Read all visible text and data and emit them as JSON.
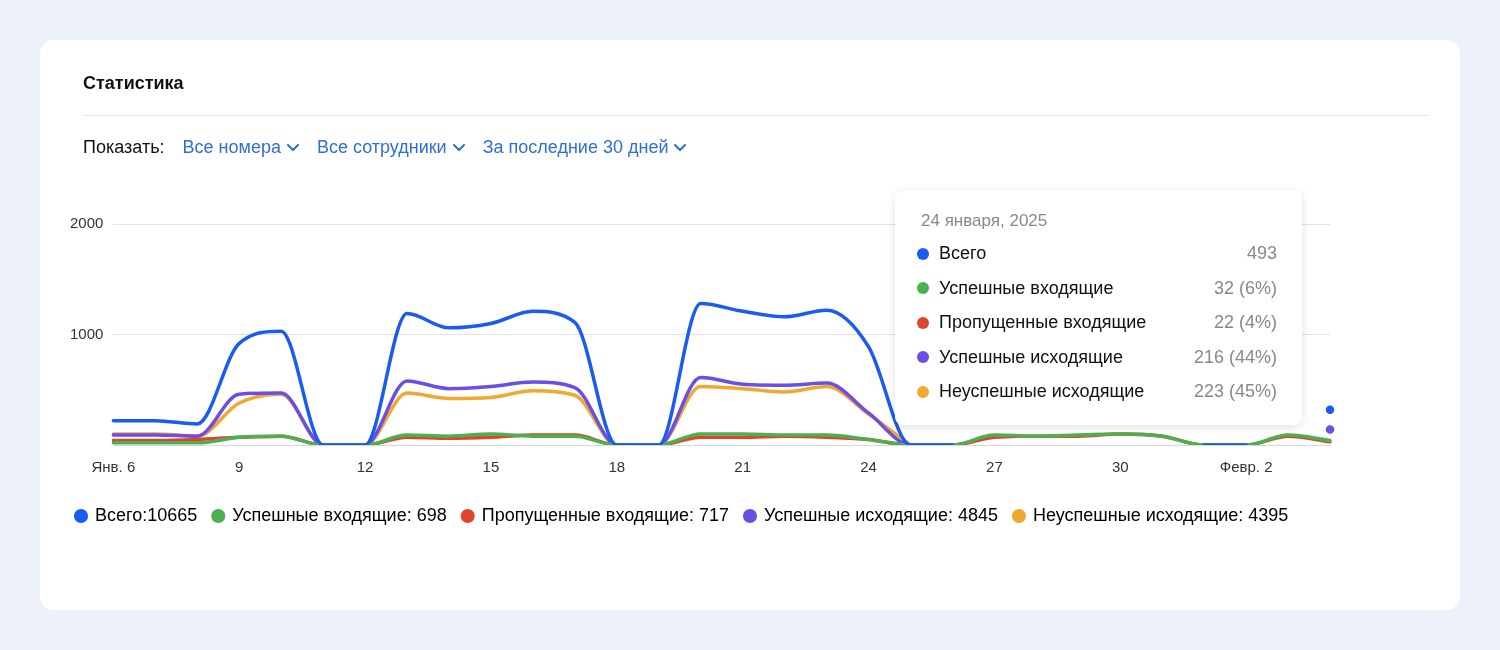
{
  "chart_data": {
    "type": "line",
    "title": "Статистика",
    "categories": [
      "Янв. 6",
      null,
      null,
      "9",
      null,
      null,
      "12",
      null,
      null,
      "15",
      null,
      null,
      "18",
      null,
      null,
      "21",
      null,
      null,
      "24",
      null,
      null,
      "27",
      null,
      null,
      "30",
      null,
      null,
      "Февр. 2",
      null,
      null
    ],
    "series": [
      {
        "name": "Всего:10665",
        "color": "#1a5cf0",
        "values": [
          220,
          220,
          190,
          920,
          1030,
          0,
          0,
          1190,
          1060,
          1100,
          1210,
          1110,
          0,
          0,
          1280,
          1210,
          1160,
          1220,
          890,
          0,
          0,
          null,
          null,
          null,
          null,
          null,
          0,
          0,
          null,
          320
        ]
      },
      {
        "name": "Успешные входящие: 698",
        "color": "#4caf50",
        "values": [
          20,
          20,
          20,
          70,
          80,
          0,
          0,
          90,
          80,
          100,
          80,
          80,
          0,
          0,
          100,
          100,
          90,
          90,
          50,
          0,
          0,
          90,
          80,
          90,
          100,
          80,
          0,
          0,
          90,
          40
        ]
      },
      {
        "name": "Пропущенные входящие: 717",
        "color": "#e0442a",
        "values": [
          40,
          40,
          50,
          70,
          80,
          0,
          0,
          70,
          60,
          70,
          90,
          90,
          0,
          0,
          70,
          70,
          80,
          70,
          50,
          0,
          0,
          70,
          80,
          80,
          100,
          80,
          0,
          0,
          80,
          30
        ]
      },
      {
        "name": "Успешные исходящие: 4845",
        "color": "#6b4ee6",
        "values": [
          90,
          90,
          80,
          460,
          470,
          0,
          0,
          580,
          510,
          530,
          570,
          520,
          0,
          0,
          610,
          550,
          540,
          560,
          290,
          0,
          0,
          null,
          null,
          null,
          null,
          null,
          null,
          null,
          null,
          140
        ]
      },
      {
        "name": "Неуспешные исходящие: 4395",
        "color": "#f0a830",
        "values": [
          100,
          100,
          80,
          380,
          460,
          0,
          0,
          470,
          420,
          430,
          490,
          450,
          0,
          0,
          530,
          510,
          480,
          530,
          280,
          0,
          null,
          null,
          null,
          null,
          null,
          null,
          null,
          null,
          null,
          null
        ]
      }
    ],
    "ylim": [
      0,
      2000
    ],
    "yticks": [
      1000,
      2000
    ],
    "grid": "y",
    "legend": "bottom",
    "marker": "none",
    "line_style": "solid",
    "annotations": [
      "Показать:",
      "Все номера",
      "Все сотрудники",
      "За последние 30 дней",
      "24 января, 2025",
      "Всего",
      "493",
      "Успешные входящие",
      "32 (6%)",
      "Пропущенные входящие",
      "22 (4%)",
      "Успешные исходящие",
      "216 (44%)",
      "Неуспешные исходящие",
      "223 (45%)"
    ]
  }
}
